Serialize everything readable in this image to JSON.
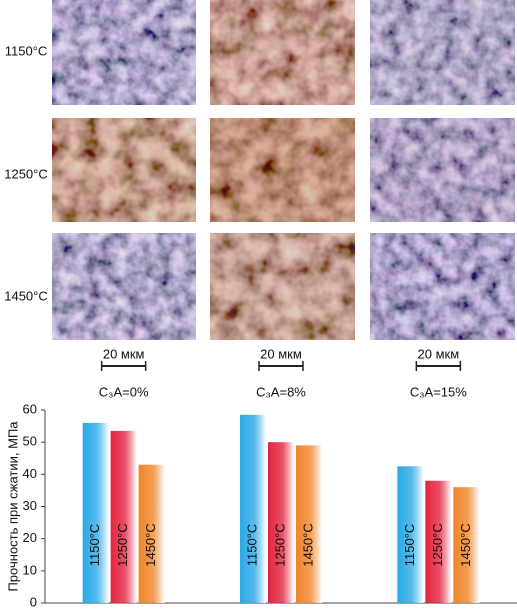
{
  "micrographs": {
    "row_labels": [
      "1150°C",
      "1250°C",
      "1450°C"
    ],
    "scale_bar": "20 мкм"
  },
  "chart_data": {
    "type": "bar",
    "y_label": "Прочность при сжатии, МПа",
    "categories": [
      "C₃A=0%",
      "C₃A=8%",
      "C₃A=15%"
    ],
    "series": [
      {
        "name": "1150°C",
        "color": "#2aa9e6",
        "values": [
          56,
          58.5,
          42.5
        ]
      },
      {
        "name": "1250°C",
        "color": "#e3243f",
        "values": [
          53.5,
          50,
          38
        ]
      },
      {
        "name": "1450°C",
        "color": "#f08528",
        "values": [
          43,
          49,
          36
        ]
      }
    ],
    "ylim": [
      0,
      60
    ],
    "yticks": [
      0,
      10,
      20,
      30,
      40,
      50,
      60
    ],
    "grid": false
  }
}
